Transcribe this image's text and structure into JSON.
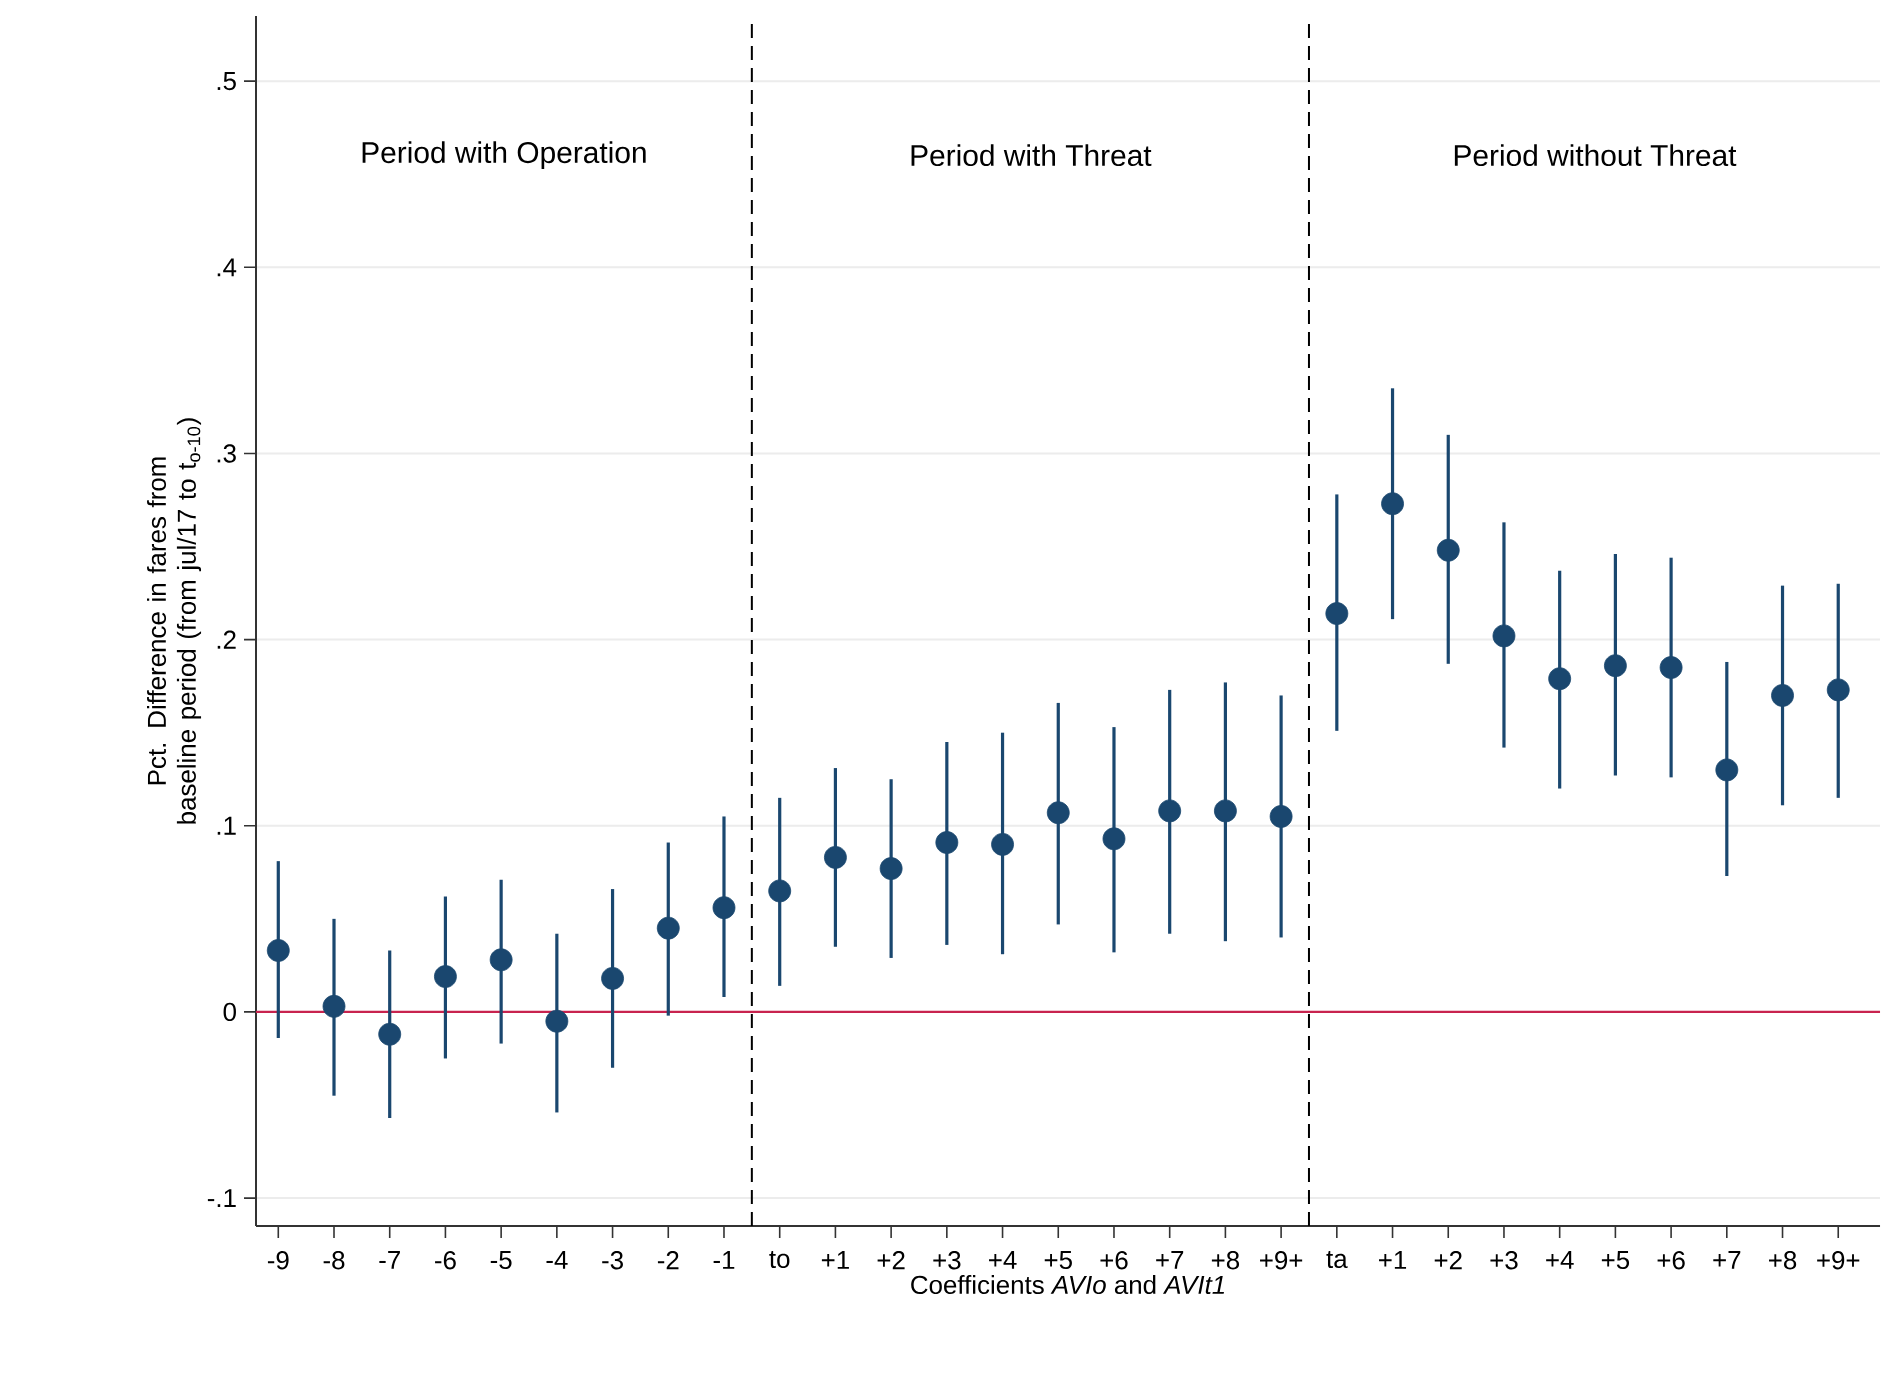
{
  "chart_data": {
    "type": "scatter",
    "xlabel": "Coefficients *AVIo* and *AVIt1*",
    "ylabel": "Pct. Difference in fares from baseline period (from jul/17 to t$_{o-10}$)",
    "categories": [
      "-9",
      "-8",
      "-7",
      "-6",
      "-5",
      "-4",
      "-3",
      "-2",
      "-1",
      "to",
      "+1",
      "+2",
      "+3",
      "+4",
      "+5",
      "+6",
      "+7",
      "+8",
      "+9+",
      "ta",
      "+1",
      "+2",
      "+3",
      "+4",
      "+5",
      "+6",
      "+7",
      "+8",
      "+9+"
    ],
    "marker": "circle",
    "series": [
      {
        "color": "#1a476f",
        "values": [
          0.033,
          0.003,
          -0.012,
          0.019,
          0.028,
          -0.005,
          0.018,
          0.045,
          0.056,
          0.065,
          0.083,
          0.077,
          0.091,
          0.09,
          0.107,
          0.093,
          0.108,
          0.108,
          0.105,
          0.214,
          0.273,
          0.248,
          0.202,
          0.179,
          0.186,
          0.185,
          0.13,
          0.17,
          0.173
        ],
        "errors": [
          [
            -0.014,
            0.081
          ],
          [
            -0.045,
            0.05
          ],
          [
            -0.057,
            0.033
          ],
          [
            -0.025,
            0.062
          ],
          [
            -0.017,
            0.071
          ],
          [
            -0.054,
            0.042
          ],
          [
            -0.03,
            0.066
          ],
          [
            -0.002,
            0.091
          ],
          [
            0.008,
            0.105
          ],
          [
            0.014,
            0.115
          ],
          [
            0.035,
            0.131
          ],
          [
            0.029,
            0.125
          ],
          [
            0.036,
            0.145
          ],
          [
            0.031,
            0.15
          ],
          [
            0.047,
            0.166
          ],
          [
            0.032,
            0.153
          ],
          [
            0.042,
            0.173
          ],
          [
            0.038,
            0.177
          ],
          [
            0.04,
            0.17
          ],
          [
            0.151,
            0.278
          ],
          [
            0.211,
            0.335
          ],
          [
            0.187,
            0.31
          ],
          [
            0.142,
            0.263
          ],
          [
            0.12,
            0.237
          ],
          [
            0.127,
            0.246
          ],
          [
            0.126,
            0.244
          ],
          [
            0.073,
            0.188
          ],
          [
            0.111,
            0.229
          ],
          [
            0.115,
            0.23
          ]
        ]
      }
    ],
    "ylim": [
      -0.115,
      0.535
    ],
    "yticks": [
      {
        "value": -0.1,
        "label": "-.1"
      },
      0,
      {
        "value": 0.1,
        "label": ".1"
      },
      {
        "value": 0.2,
        "label": ".2"
      },
      {
        "value": 0.3,
        "label": ".3"
      },
      {
        "value": 0.4,
        "label": ".4"
      },
      {
        "value": 0.5,
        "label": ".5"
      }
    ],
    "grid": "y",
    "ref_lines": [
      {
        "axis": "y",
        "value": 0,
        "color": "#c8234e",
        "line_style": "solid"
      }
    ],
    "annotations": [
      "Period with Operation",
      "Period with Threat",
      "Period without Threat"
    ]
  }
}
